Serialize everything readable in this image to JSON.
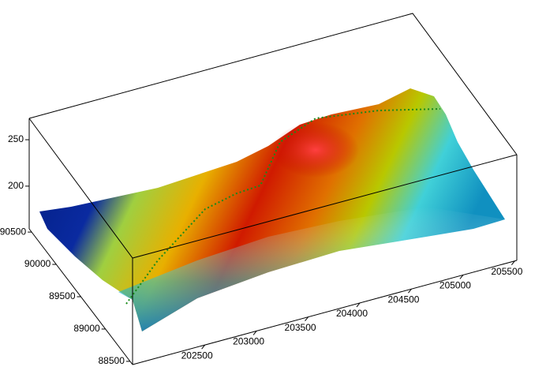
{
  "chart_data": {
    "type": "surface",
    "xlim": [
      201800,
      205520
    ],
    "xticks": [
      202500,
      203000,
      203500,
      204000,
      204500,
      205000,
      205500
    ],
    "ylim": [
      88450,
      90550
    ],
    "yticks": [
      88500,
      89000,
      89500,
      90000,
      90500
    ],
    "zlim": [
      154,
      273
    ],
    "zticks": [
      200,
      250
    ]
  }
}
